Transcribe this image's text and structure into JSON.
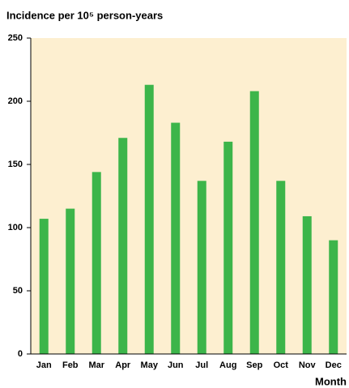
{
  "chart_data": {
    "type": "bar",
    "title": "Incidence per 10⁵ person-years",
    "x_label": "Month",
    "categories": [
      "Jan",
      "Feb",
      "Mar",
      "Apr",
      "May",
      "Jun",
      "Jul",
      "Aug",
      "Sep",
      "Oct",
      "Nov",
      "Dec"
    ],
    "values": [
      107,
      115,
      144,
      171,
      213,
      183,
      137,
      168,
      208,
      137,
      109,
      90
    ],
    "color": "#3cb54a",
    "background": "#fdefd0",
    "ylim": [
      0,
      250
    ],
    "yticks": [
      0,
      50,
      100,
      150,
      200,
      250
    ],
    "grid": false
  }
}
